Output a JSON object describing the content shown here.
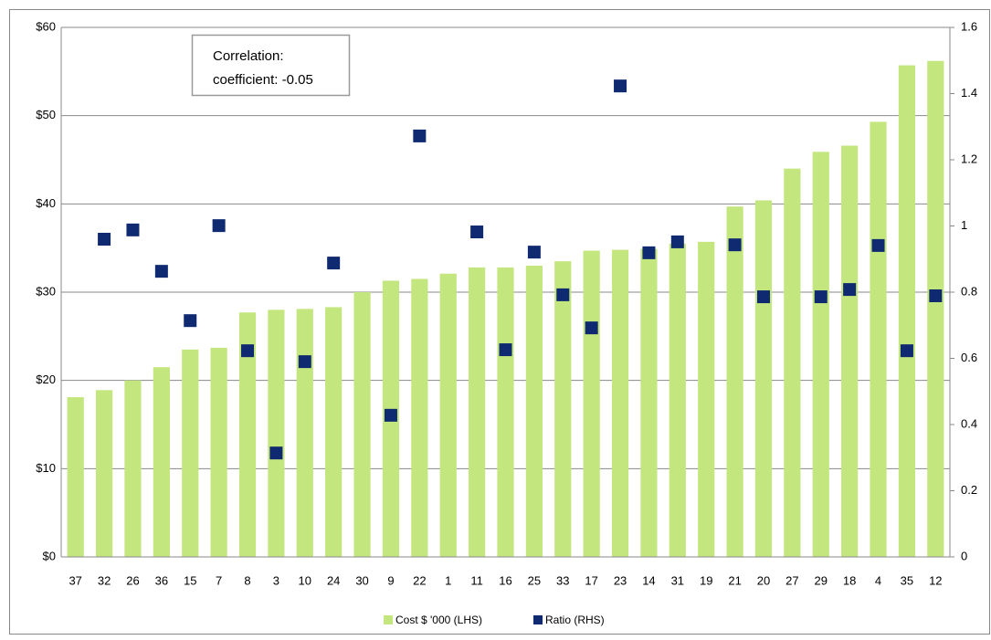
{
  "chart_data": {
    "type": "bar",
    "annotation": [
      "Correlation:",
      "coefficient: -0.05"
    ],
    "categories": [
      "37",
      "32",
      "26",
      "36",
      "15",
      "7",
      "8",
      "3",
      "10",
      "24",
      "30",
      "9",
      "22",
      "1",
      "11",
      "16",
      "25",
      "33",
      "17",
      "23",
      "14",
      "31",
      "19",
      "21",
      "20",
      "27",
      "29",
      "18",
      "4",
      "35",
      "12"
    ],
    "series": [
      {
        "name": "Cost $ '000 (LHS)",
        "type": "bar",
        "color": "#c4e67f",
        "values": [
          18.1,
          18.9,
          20.0,
          21.5,
          23.5,
          23.7,
          27.7,
          28.0,
          28.1,
          28.3,
          30.0,
          31.3,
          31.5,
          32.1,
          32.8,
          32.8,
          33.0,
          33.5,
          34.7,
          34.8,
          34.9,
          35.5,
          35.7,
          39.7,
          40.4,
          44.0,
          45.9,
          46.6,
          49.3,
          55.7,
          56.2
        ]
      },
      {
        "name": "Ratio (RHS)",
        "type": "scatter",
        "axis": "y2",
        "color": "#0f2a70",
        "values": [
          null,
          0.96,
          0.988,
          0.863,
          0.714,
          1.001,
          0.623,
          0.314,
          0.59,
          0.888,
          null,
          0.428,
          1.272,
          null,
          0.982,
          0.626,
          0.921,
          0.792,
          0.692,
          1.423,
          0.919,
          0.952,
          null,
          0.943,
          0.786,
          null,
          0.786,
          0.808,
          0.941,
          0.623,
          0.789
        ]
      }
    ],
    "ylim": [
      0,
      60
    ],
    "yticks": [
      {
        "value": 0,
        "label": "$0"
      },
      {
        "value": 10,
        "label": "$10"
      },
      {
        "value": 20,
        "label": "$20"
      },
      {
        "value": 30,
        "label": "$30"
      },
      {
        "value": 40,
        "label": "$40"
      },
      {
        "value": 50,
        "label": "$50"
      },
      {
        "value": 60,
        "label": "$60"
      }
    ],
    "y2lim": [
      0,
      1.6
    ],
    "y2ticks": [
      0,
      0.2,
      0.4,
      0.6,
      0.8,
      1,
      1.2,
      1.4,
      1.6
    ],
    "grid": true
  }
}
